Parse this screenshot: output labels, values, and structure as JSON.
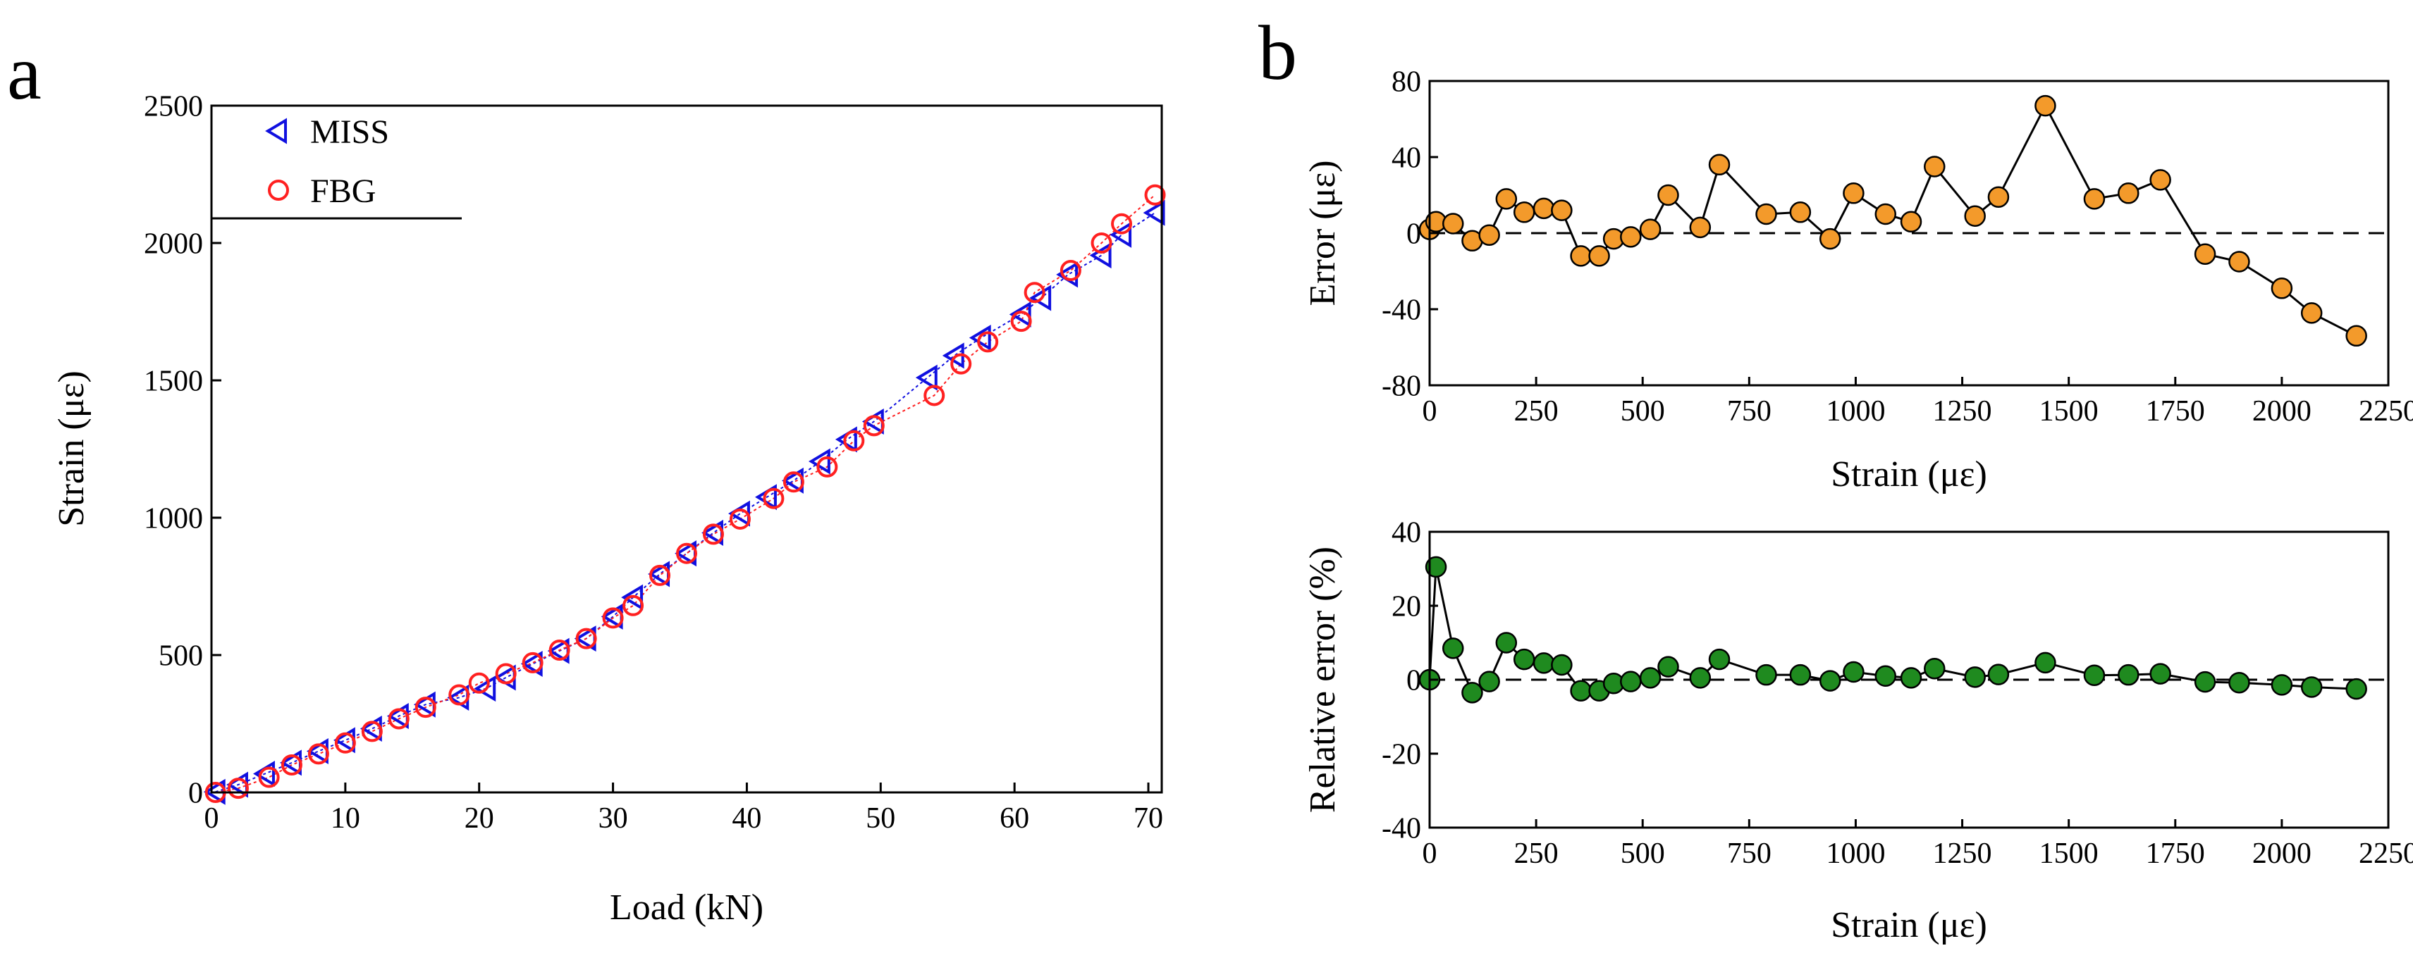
{
  "panel_labels": {
    "a": "a",
    "b": "b"
  },
  "colors": {
    "miss": "#1010e0",
    "fbg": "#ff2020",
    "error_fill": "#f39a2b",
    "relerr_fill": "#1f8a1f",
    "axis": "#000000"
  },
  "chart_data": [
    {
      "id": "a",
      "type": "scatter",
      "title": "",
      "xlabel": "Load (kN)",
      "ylabel": "Strain (με)",
      "xlim": [
        0,
        71
      ],
      "ylim": [
        0,
        2500
      ],
      "xticks": [
        0,
        10,
        20,
        30,
        40,
        50,
        60,
        70
      ],
      "yticks": [
        0,
        500,
        1000,
        1500,
        2000,
        2500
      ],
      "xtick_labels": [
        "0",
        "10",
        "20",
        "30",
        "40",
        "50",
        "60",
        "70"
      ],
      "ytick_labels": [
        "0",
        "500",
        "1000",
        "1500",
        "2000",
        "2500"
      ],
      "grid": false,
      "legend_position": "top-left",
      "series": [
        {
          "name": "MISS",
          "marker": "triangle-left",
          "x": [
            0.3,
            2,
            4,
            6,
            8,
            10,
            12,
            14,
            16,
            18.5,
            20.5,
            22,
            24,
            26,
            28,
            30,
            31.5,
            33.5,
            35.5,
            37.5,
            39.5,
            41.5,
            43.5,
            45.5,
            47.5,
            49.5,
            53.5,
            55.5,
            57.5,
            60.5,
            62,
            64,
            66.5,
            68,
            70.5
          ],
          "y": [
            2,
            28,
            68,
            108,
            150,
            190,
            232,
            278,
            320,
            345,
            378,
            418,
            468,
            515,
            560,
            640,
            710,
            795,
            870,
            945,
            1015,
            1075,
            1135,
            1205,
            1285,
            1350,
            1510,
            1590,
            1655,
            1740,
            1800,
            1885,
            1955,
            2030,
            2110
          ]
        },
        {
          "name": "FBG",
          "marker": "circle",
          "x": [
            0.3,
            2,
            4.3,
            6,
            8,
            10,
            12,
            14,
            16,
            18.5,
            20,
            22,
            24,
            26,
            28,
            30,
            31.5,
            33.5,
            35.5,
            37.5,
            39.5,
            42,
            43.5,
            46,
            48,
            49.5,
            54,
            56,
            58,
            60.5,
            61.5,
            64.2,
            66.5,
            68,
            70.5
          ],
          "y": [
            0,
            15,
            55,
            100,
            140,
            180,
            222,
            268,
            310,
            355,
            398,
            432,
            472,
            518,
            560,
            635,
            680,
            790,
            870,
            940,
            995,
            1070,
            1130,
            1185,
            1280,
            1335,
            1445,
            1560,
            1640,
            1715,
            1820,
            1900,
            2000,
            2070,
            2175
          ]
        }
      ]
    },
    {
      "id": "b-top",
      "type": "line",
      "title": "",
      "xlabel": "Strain (με)",
      "ylabel": "Error (με)",
      "xlim": [
        0,
        2250
      ],
      "ylim": [
        -80,
        80
      ],
      "xticks": [
        0,
        250,
        500,
        750,
        1000,
        1250,
        1500,
        1750,
        2000,
        2250
      ],
      "yticks": [
        -80,
        -40,
        0,
        40,
        80
      ],
      "xtick_labels": [
        "0",
        "250",
        "500",
        "750",
        "1000",
        "1250",
        "1500",
        "1750",
        "2000",
        "2250"
      ],
      "ytick_labels": [
        "-80",
        "-40",
        "0",
        "40",
        "80"
      ],
      "reference_line": 0,
      "grid": false,
      "series": [
        {
          "name": "Error",
          "x": [
            0,
            15,
            55,
            100,
            140,
            180,
            222,
            268,
            310,
            355,
            398,
            432,
            472,
            518,
            560,
            635,
            680,
            790,
            870,
            940,
            995,
            1070,
            1130,
            1185,
            1280,
            1335,
            1445,
            1560,
            1640,
            1715,
            1820,
            1900,
            2000,
            2070,
            2175
          ],
          "y": [
            2,
            6,
            5,
            -4,
            -1,
            18,
            11,
            13,
            12,
            -12,
            -12,
            -3,
            -2,
            2,
            20,
            3,
            36,
            10,
            11,
            -3,
            21,
            10,
            6,
            35,
            9,
            19,
            67,
            18,
            21,
            28,
            -11,
            -15,
            -29,
            -42,
            -54
          ]
        }
      ]
    },
    {
      "id": "b-bottom",
      "type": "line",
      "title": "",
      "xlabel": "Strain (με)",
      "ylabel": "Relative error (%)",
      "xlim": [
        0,
        2250
      ],
      "ylim": [
        -40,
        40
      ],
      "xticks": [
        0,
        250,
        500,
        750,
        1000,
        1250,
        1500,
        1750,
        2000,
        2250
      ],
      "yticks": [
        -40,
        -20,
        0,
        20,
        40
      ],
      "xtick_labels": [
        "0",
        "250",
        "500",
        "750",
        "1000",
        "1250",
        "1500",
        "1750",
        "2000",
        "2250"
      ],
      "ytick_labels": [
        "-40",
        "-20",
        "0",
        "20",
        "40"
      ],
      "reference_line": 0,
      "grid": false,
      "series": [
        {
          "name": "Relative error",
          "x": [
            0,
            15,
            55,
            100,
            140,
            180,
            222,
            268,
            310,
            355,
            398,
            432,
            472,
            518,
            560,
            635,
            680,
            790,
            870,
            940,
            995,
            1070,
            1130,
            1185,
            1280,
            1335,
            1445,
            1560,
            1640,
            1715,
            1820,
            1900,
            2000,
            2070,
            2175
          ],
          "y": [
            0,
            30.5,
            8.5,
            -3.5,
            -0.5,
            10,
            5.5,
            4.5,
            4,
            -3,
            -3,
            -1,
            -0.5,
            0.5,
            3.5,
            0.5,
            5.5,
            1.3,
            1.3,
            -0.3,
            2.1,
            1,
            0.5,
            3,
            0.7,
            1.4,
            4.6,
            1.2,
            1.3,
            1.6,
            -0.6,
            -0.8,
            -1.4,
            -2,
            -2.5
          ]
        }
      ]
    }
  ]
}
